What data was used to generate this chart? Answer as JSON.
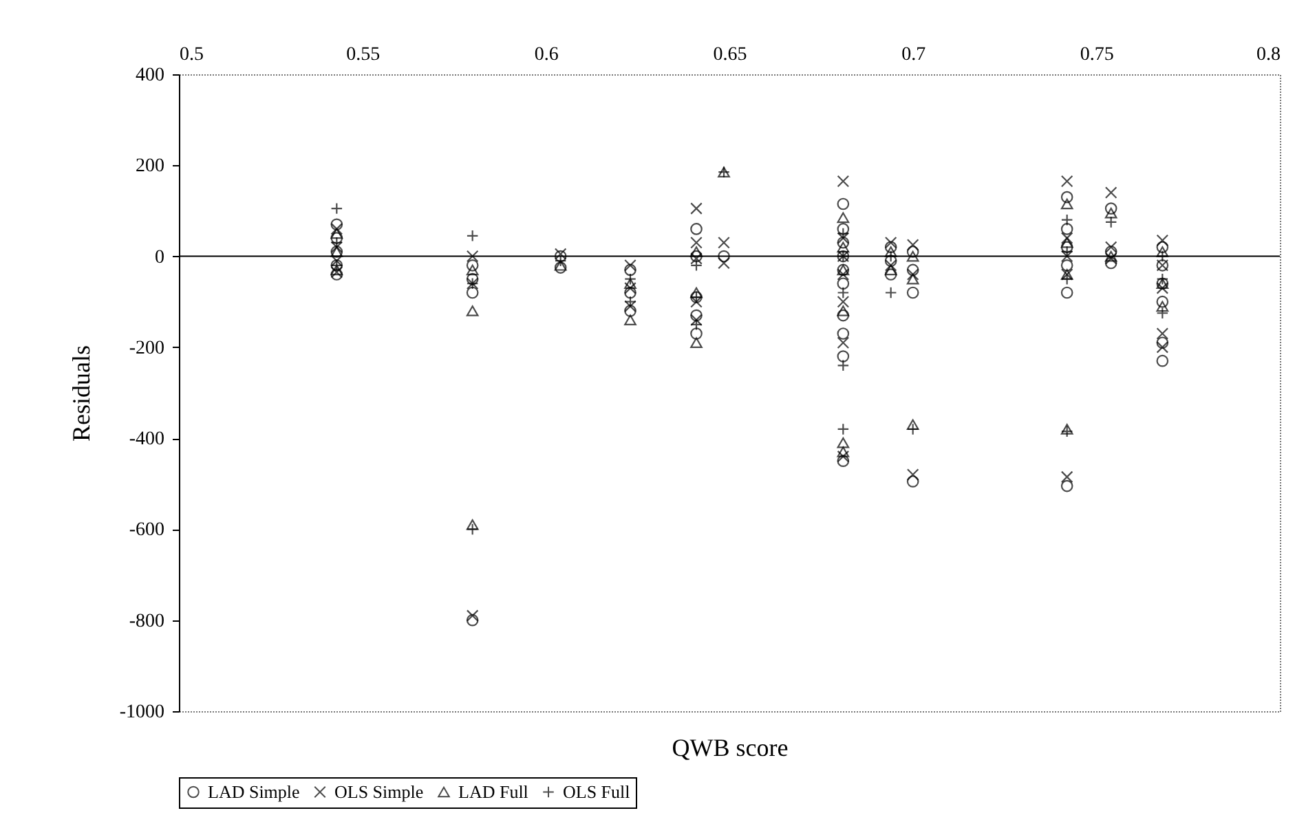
{
  "chart_data": {
    "type": "scatter",
    "xlabel": "QWB score",
    "ylabel": "Residuals",
    "xlim": [
      0.5,
      0.8
    ],
    "ylim": [
      -1000,
      400
    ],
    "xticks": [
      0.5,
      0.55,
      0.6,
      0.65,
      0.7,
      0.75,
      0.8
    ],
    "yticks": [
      400,
      200,
      0,
      -200,
      -400,
      -600,
      -800,
      -1000
    ],
    "grid": false,
    "legend": "bottom",
    "ref_lines": [
      {
        "axis": "y",
        "value": 0,
        "color": "#000000"
      }
    ],
    "series": [
      {
        "name": "LAD Simple",
        "color": "#000000",
        "marker": "circle",
        "x": [
          0.543,
          0.543,
          0.543,
          0.543,
          0.543,
          0.58,
          0.58,
          0.58,
          0.58,
          0.604,
          0.604,
          0.623,
          0.623,
          0.623,
          0.641,
          0.641,
          0.641,
          0.641,
          0.641,
          0.6485,
          0.681,
          0.681,
          0.681,
          0.681,
          0.681,
          0.681,
          0.681,
          0.681,
          0.681,
          0.681,
          0.694,
          0.694,
          0.694,
          0.7,
          0.7,
          0.7,
          0.7,
          0.742,
          0.742,
          0.742,
          0.742,
          0.742,
          0.742,
          0.754,
          0.754,
          0.754,
          0.768,
          0.768,
          0.768,
          0.768,
          0.768,
          0.768
        ],
        "values": [
          70,
          40,
          10,
          -20,
          -40,
          -20,
          -50,
          -80,
          -800,
          0,
          -25,
          -30,
          -80,
          -120,
          60,
          0,
          -90,
          -130,
          -170,
          0,
          115,
          60,
          30,
          0,
          -30,
          -60,
          -130,
          -170,
          -220,
          -450,
          20,
          -10,
          -40,
          10,
          -30,
          -80,
          -495,
          130,
          60,
          20,
          -20,
          -80,
          -505,
          105,
          10,
          -15,
          20,
          -20,
          -60,
          -100,
          -190,
          -230
        ]
      },
      {
        "name": "OLS Simple",
        "color": "#000000",
        "marker": "x",
        "x": [
          0.543,
          0.543,
          0.543,
          0.543,
          0.58,
          0.58,
          0.58,
          0.604,
          0.623,
          0.623,
          0.623,
          0.641,
          0.641,
          0.641,
          0.641,
          0.641,
          0.6485,
          0.6485,
          0.681,
          0.681,
          0.681,
          0.681,
          0.681,
          0.681,
          0.681,
          0.694,
          0.694,
          0.7,
          0.7,
          0.7,
          0.742,
          0.742,
          0.742,
          0.742,
          0.742,
          0.754,
          0.754,
          0.754,
          0.768,
          0.768,
          0.768,
          0.768,
          0.768
        ],
        "values": [
          60,
          20,
          -10,
          -35,
          0,
          -60,
          -790,
          5,
          -20,
          -70,
          -110,
          105,
          30,
          -5,
          -100,
          -140,
          30,
          -15,
          165,
          40,
          0,
          -40,
          -100,
          -190,
          -440,
          30,
          -20,
          25,
          -40,
          -480,
          165,
          40,
          0,
          -40,
          -485,
          140,
          20,
          -5,
          35,
          -20,
          -70,
          -170,
          -200
        ]
      },
      {
        "name": "LAD Full",
        "color": "#000000",
        "marker": "triangle",
        "x": [
          0.543,
          0.543,
          0.543,
          0.58,
          0.58,
          0.58,
          0.604,
          0.623,
          0.623,
          0.641,
          0.641,
          0.641,
          0.6485,
          0.681,
          0.681,
          0.681,
          0.681,
          0.681,
          0.681,
          0.694,
          0.694,
          0.7,
          0.7,
          0.7,
          0.742,
          0.742,
          0.742,
          0.742,
          0.754,
          0.754,
          0.768,
          0.768,
          0.768
        ],
        "values": [
          50,
          10,
          -30,
          -30,
          -120,
          -590,
          -20,
          -60,
          -140,
          10,
          -80,
          -190,
          185,
          85,
          20,
          -30,
          -120,
          -410,
          -430,
          10,
          -30,
          0,
          -50,
          -370,
          115,
          30,
          -40,
          -380,
          95,
          0,
          10,
          -60,
          -110
        ]
      },
      {
        "name": "OLS Full",
        "color": "#000000",
        "marker": "plus",
        "x": [
          0.543,
          0.543,
          0.543,
          0.58,
          0.58,
          0.58,
          0.604,
          0.623,
          0.623,
          0.641,
          0.641,
          0.641,
          0.6485,
          0.681,
          0.681,
          0.681,
          0.681,
          0.681,
          0.694,
          0.694,
          0.7,
          0.742,
          0.742,
          0.742,
          0.742,
          0.754,
          0.768,
          0.768,
          0.768
        ],
        "values": [
          105,
          30,
          -20,
          45,
          -60,
          -600,
          -10,
          -50,
          -100,
          -20,
          -90,
          -150,
          185,
          50,
          0,
          -80,
          -240,
          -380,
          0,
          -80,
          -380,
          80,
          10,
          -50,
          -385,
          75,
          0,
          -50,
          -125
        ]
      }
    ]
  }
}
